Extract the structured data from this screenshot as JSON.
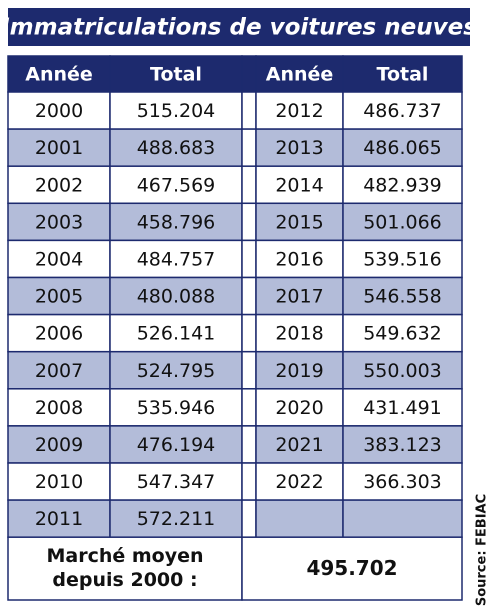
{
  "title": "Immatriculations de voitures neuves",
  "table": {
    "header": [
      "Année",
      "Total"
    ],
    "left": [
      [
        "2000",
        "515.204"
      ],
      [
        "2001",
        "488.683"
      ],
      [
        "2002",
        "467.569"
      ],
      [
        "2003",
        "458.796"
      ],
      [
        "2004",
        "484.757"
      ],
      [
        "2005",
        "480.088"
      ],
      [
        "2006",
        "526.141"
      ],
      [
        "2007",
        "524.795"
      ],
      [
        "2008",
        "535.946"
      ],
      [
        "2009",
        "476.194"
      ],
      [
        "2010",
        "547.347"
      ],
      [
        "2011",
        "572.211"
      ]
    ],
    "right": [
      [
        "2012",
        "486.737"
      ],
      [
        "2013",
        "486.065"
      ],
      [
        "2014",
        "482.939"
      ],
      [
        "2015",
        "501.066"
      ],
      [
        "2016",
        "539.516"
      ],
      [
        "2017",
        "546.558"
      ],
      [
        "2018",
        "549.632"
      ],
      [
        "2019",
        "550.003"
      ],
      [
        "2020",
        "431.491"
      ],
      [
        "2021",
        "383.123"
      ],
      [
        "2022",
        "366.303"
      ]
    ]
  },
  "footer": {
    "label_lines": [
      "Marché moyen",
      "depuis 2000 :"
    ],
    "value": "495.702"
  },
  "source": "Source: FEBIAC"
}
